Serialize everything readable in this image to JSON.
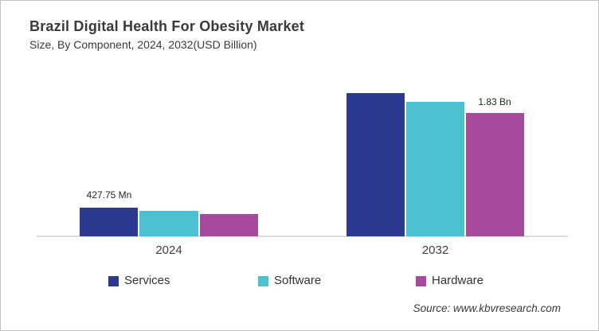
{
  "header": {
    "title": "Brazil Digital Health For Obesity Market",
    "subtitle": "Size, By Component, 2024, 2032(USD Billion)"
  },
  "chart_data": {
    "type": "bar",
    "title": "Brazil Digital Health For Obesity Market Size, By Component, 2024, 2032(USD Billion)",
    "categories": [
      "2024",
      "2032"
    ],
    "unit": "USD Billion",
    "series": [
      {
        "name": "Services",
        "color": "#2b3990",
        "values": [
          0.42775,
          2.13
        ]
      },
      {
        "name": "Software",
        "color": "#4cc2d0",
        "values": [
          0.38,
          2.0
        ]
      },
      {
        "name": "Hardware",
        "color": "#a74a9c",
        "values": [
          0.33,
          1.83
        ]
      }
    ],
    "data_labels": [
      {
        "text": "427.75 Mn",
        "series": "Services",
        "category": "2024",
        "value_billion": 0.42775
      },
      {
        "text": "1.83 Bn",
        "series": "Hardware",
        "category": "2032",
        "value_billion": 1.83
      }
    ],
    "ylim": [
      0,
      2.36
    ],
    "grid": false,
    "y_axis_visible": false,
    "legend_position": "bottom",
    "axis_line_color": "#dcdcdc"
  },
  "footer": {
    "source": "Source: www.kbvresearch.com"
  }
}
